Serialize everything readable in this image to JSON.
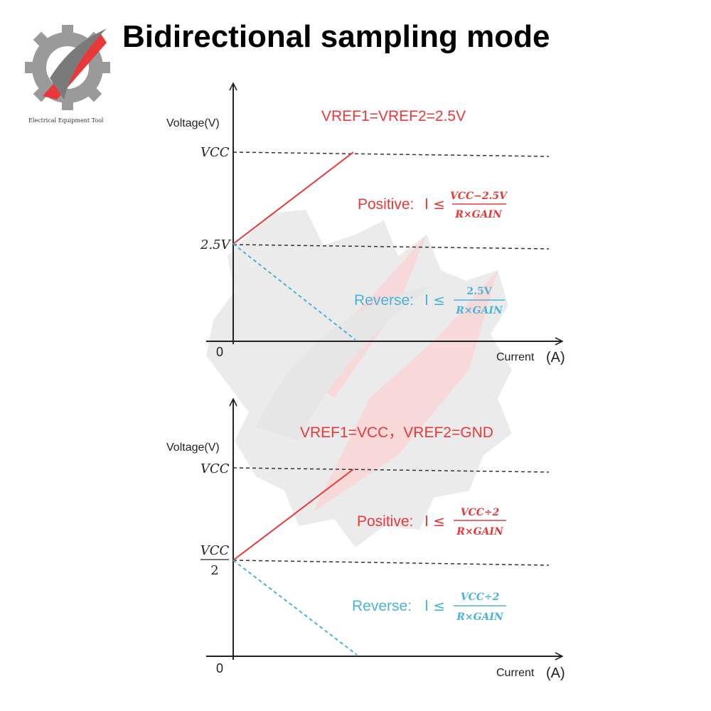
{
  "title": "Bidirectional sampling mode",
  "logo": {
    "caption": "Electrical Equipment Tool"
  },
  "colors": {
    "positive": "#e8383a",
    "reverse": "#4ab3dc",
    "axis": "#222222",
    "dashed": "#333333"
  },
  "panels": [
    {
      "ylabel": "Voltage(V)",
      "xlabel": "Current",
      "xunit": "(A)",
      "origin": "0",
      "ticks": {
        "top": "VCC",
        "mid": "2.5V"
      },
      "vref": "VREF1=VREF2=2.5V",
      "positive": {
        "label": "Positive:",
        "rel": "I ≤",
        "num": "VCC−2.5V",
        "den": "R×GAIN"
      },
      "reverse": {
        "label": "Reverse:",
        "rel": "I ≤",
        "num": "2.5V",
        "den": "R×GAIN"
      }
    },
    {
      "ylabel": "Voltage(V)",
      "xlabel": "Current",
      "xunit": "(A)",
      "origin": "0",
      "ticks": {
        "top": "VCC",
        "mid_num": "VCC",
        "mid_den": "2"
      },
      "vref": "VREF1=VCC，VREF2=GND",
      "positive": {
        "label": "Positive:",
        "rel": "I ≤",
        "num": "VCC÷2",
        "den": "R×GAIN"
      },
      "reverse": {
        "label": "Reverse:",
        "rel": "I ≤",
        "num": "VCC÷2",
        "den": "R×GAIN"
      }
    }
  ]
}
